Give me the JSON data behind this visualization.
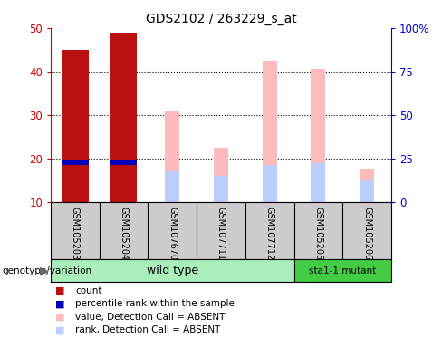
{
  "title": "GDS2102 / 263229_s_at",
  "samples": [
    "GSM105203",
    "GSM105204",
    "GSM107670",
    "GSM107711",
    "GSM107712",
    "GSM105205",
    "GSM105206"
  ],
  "count_values": [
    45,
    49,
    null,
    null,
    null,
    null,
    null
  ],
  "percentile_rank_values": [
    19,
    19,
    null,
    null,
    null,
    null,
    null
  ],
  "absent_value_values": [
    null,
    null,
    31,
    22.5,
    42.5,
    40.5,
    17.5
  ],
  "absent_rank_values": [
    null,
    null,
    17,
    16,
    18.5,
    19,
    15
  ],
  "ylim_left": [
    10,
    50
  ],
  "ylim_right": [
    0,
    100
  ],
  "left_ticks": [
    10,
    20,
    30,
    40,
    50
  ],
  "right_ticks": [
    0,
    25,
    50,
    75,
    100
  ],
  "right_tick_labels": [
    "0",
    "25",
    "50",
    "75",
    "100%"
  ],
  "bar_width": 0.55,
  "count_color": "#bb1111",
  "percentile_color": "#0000bb",
  "absent_value_color": "#ffbbbb",
  "absent_rank_color": "#bbccff",
  "bg_color": "#ffffff",
  "plot_bg": "#ffffff",
  "sample_bg": "#cccccc",
  "left_axis_color": "#cc0000",
  "right_axis_color": "#0000cc",
  "wild_type_color": "#aaeebb",
  "mutant_color": "#44cc44",
  "wild_type_label": "wild type",
  "mutant_label": "sta1-1 mutant",
  "genotype_label": "genotype/variation",
  "legend_items": [
    {
      "label": "count",
      "color": "#bb1111"
    },
    {
      "label": "percentile rank within the sample",
      "color": "#0000bb"
    },
    {
      "label": "value, Detection Call = ABSENT",
      "color": "#ffbbbb"
    },
    {
      "label": "rank, Detection Call = ABSENT",
      "color": "#bbccff"
    }
  ],
  "wild_type_indices": [
    0,
    1,
    2,
    3,
    4
  ],
  "mutant_indices": [
    5,
    6
  ]
}
